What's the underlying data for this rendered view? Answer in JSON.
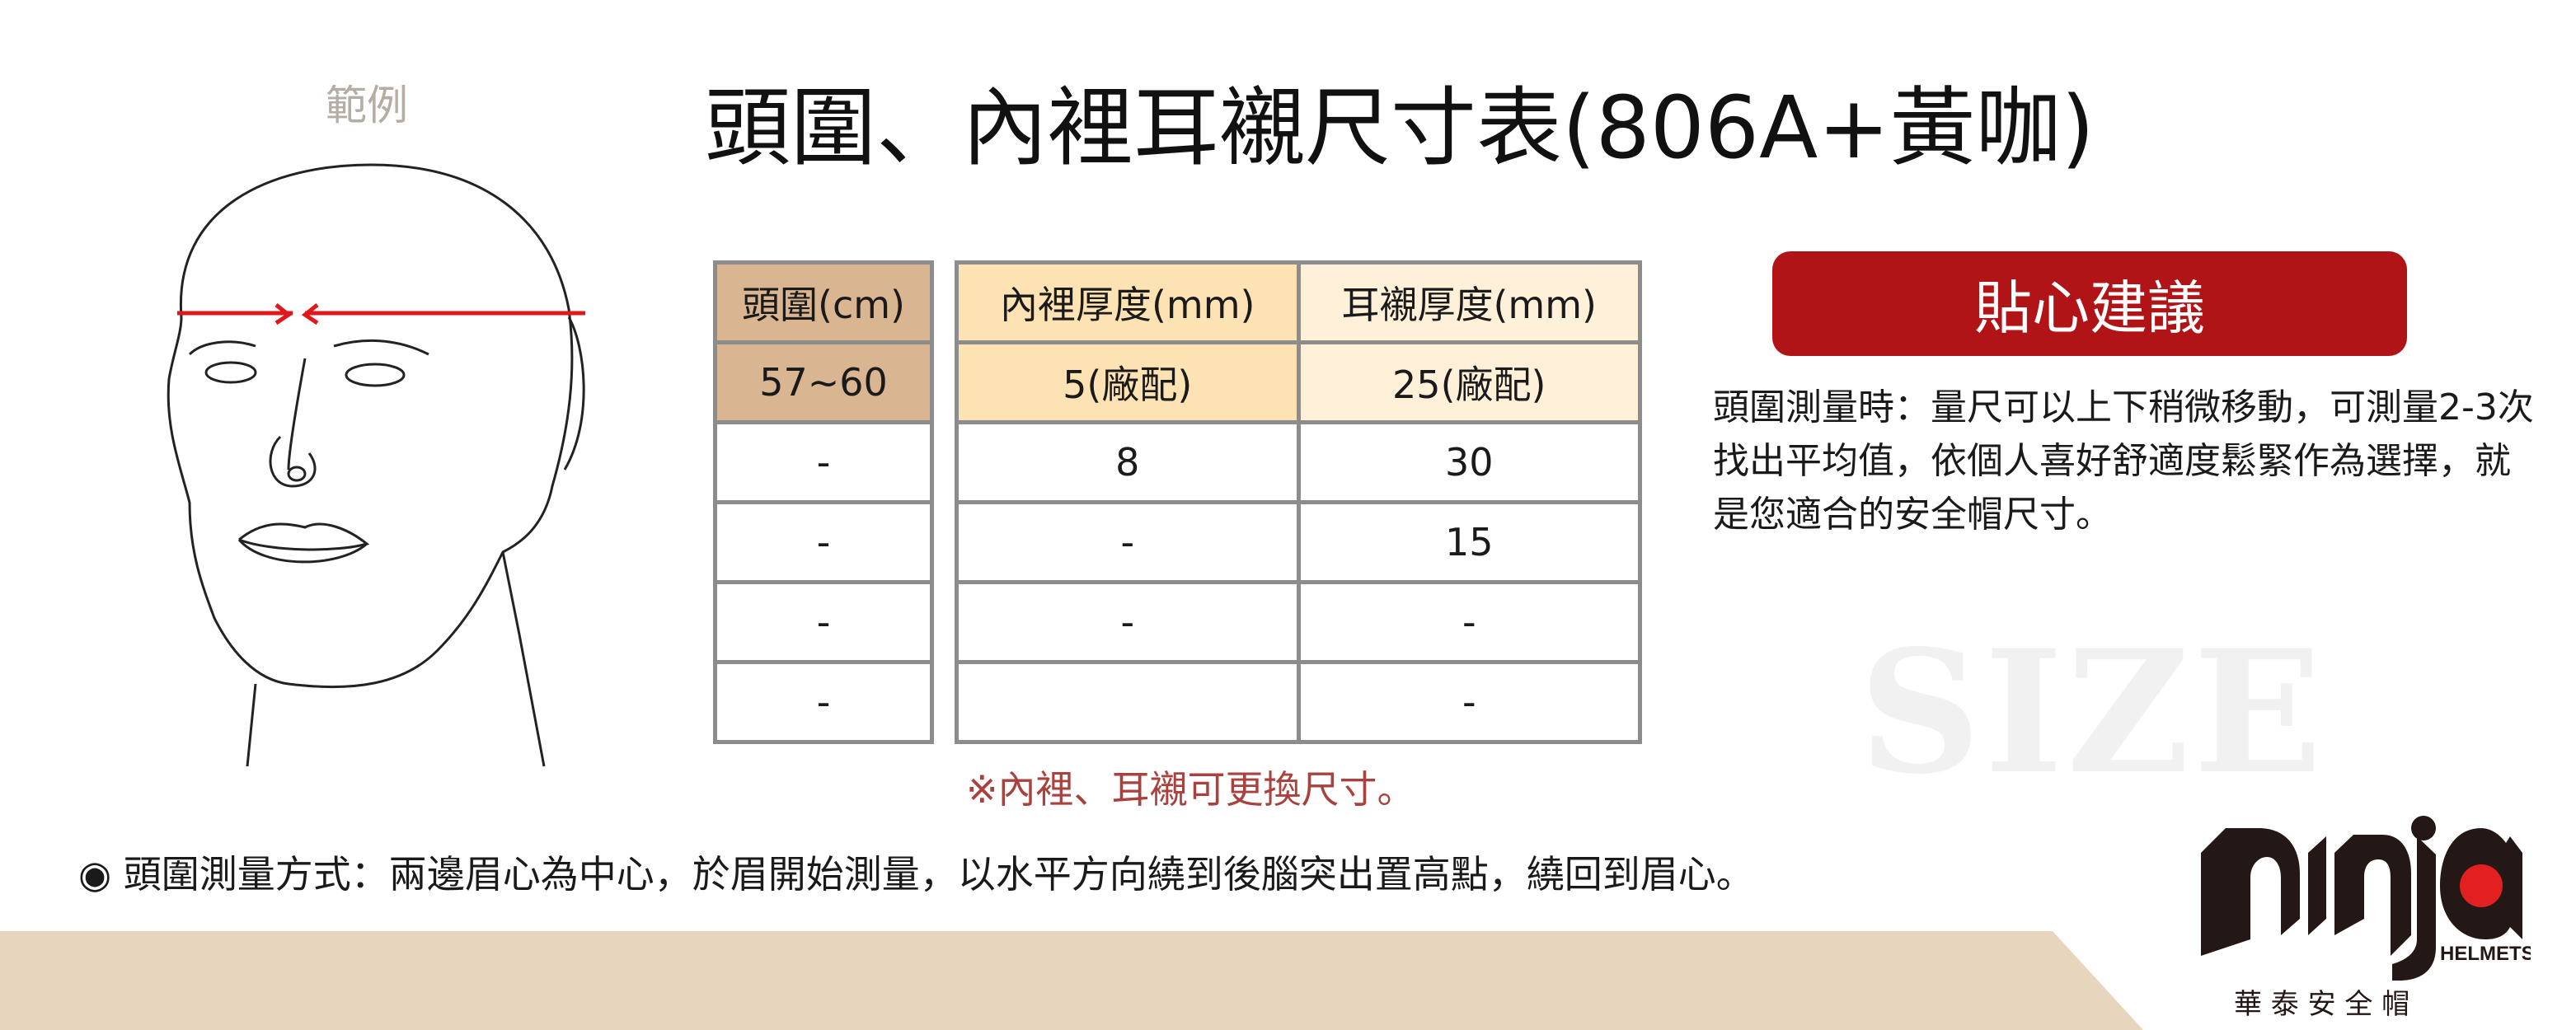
{
  "example_label": "範例",
  "title": "頭圍、內裡耳襯尺寸表(806A+黃咖)",
  "head_table": {
    "header": "頭圍(cm)",
    "rows": [
      "57~60",
      "-",
      "-",
      "-",
      "-"
    ]
  },
  "pad_table": {
    "headers": [
      "內裡厚度(mm)",
      "耳襯厚度(mm)"
    ],
    "rows": [
      [
        "5(廠配)",
        "25(廠配)"
      ],
      [
        "8",
        "30"
      ],
      [
        "-",
        "15"
      ],
      [
        "-",
        "-"
      ],
      [
        "",
        "-"
      ]
    ]
  },
  "tip": {
    "title": "貼心建議",
    "text": "頭圍測量時：量尺可以上下稍微移動，可測量2-3次找出平均值，依個人喜好舒適度鬆緊作為選擇，就是您適合的安全帽尺寸。"
  },
  "watermark": "SIZE",
  "note": "※內裡、耳襯可更換尺寸。",
  "method": "◉ 頭圍測量方式：兩邊眉心為中心，於眉開始測量，以水平方向繞到後腦突出置高點，繞回到眉心。",
  "logo": {
    "brand": "ninja",
    "sub": "HELMETS",
    "company": "華 泰 安 全 帽"
  },
  "colors": {
    "accent_red": "#b01416",
    "head_col": "#d9b592",
    "inner_col": "#fde2b3",
    "ear_col": "#fff1d9",
    "band": "#e8d5bd",
    "note": "#a9423e"
  }
}
